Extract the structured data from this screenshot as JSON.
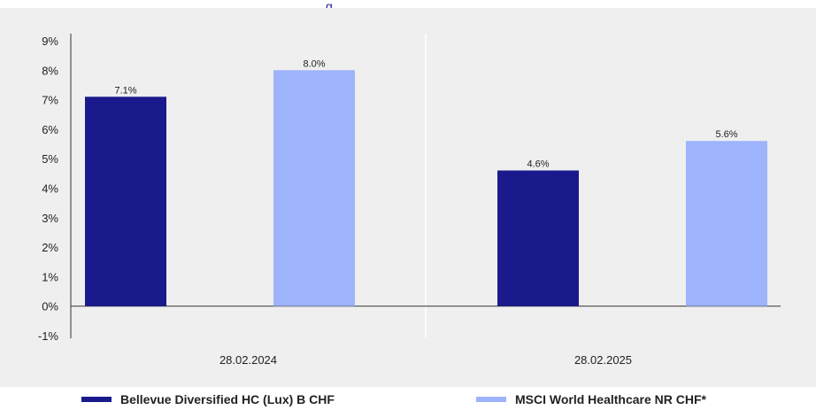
{
  "colors": {
    "series1": "#1a1a8c",
    "series2": "#9db3fb",
    "panel": "#efefef",
    "axis": "#333333",
    "grid": "#ffffff"
  },
  "chart_data": {
    "type": "bar",
    "title": "",
    "xlabel": "",
    "ylabel": "",
    "categories": [
      "28.02.2024",
      "28.02.2025"
    ],
    "series": [
      {
        "name": "Bellevue Diversified HC (Lux) B CHF",
        "values": [
          7.1,
          4.6
        ]
      },
      {
        "name": "MSCI World Healthcare NR CHF*",
        "values": [
          8.0,
          5.6
        ]
      }
    ],
    "data_labels": [
      [
        "7.1%",
        "4.6%"
      ],
      [
        "8.0%",
        "5.6%"
      ]
    ],
    "y_ticks": [
      9,
      8,
      7,
      6,
      5,
      4,
      3,
      2,
      1,
      0,
      -1
    ],
    "y_tick_labels": [
      "9%",
      "8%",
      "7%",
      "6%",
      "5%",
      "4%",
      "3%",
      "2%",
      "1%",
      "0%",
      "-1%"
    ],
    "ylim": [
      -1,
      9
    ],
    "grid": false,
    "legend_position": "bottom"
  }
}
